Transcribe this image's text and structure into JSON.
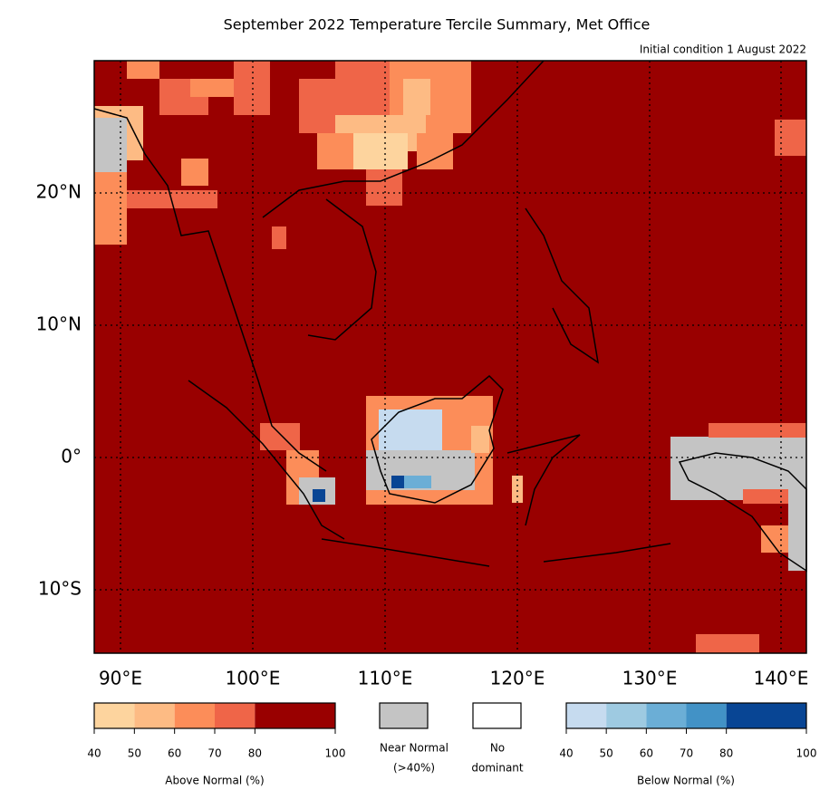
{
  "title": "September 2022 Temperature Tercile Summary, Met Office",
  "subtitle": "Initial condition 1 August 2022",
  "map": {
    "lat_labels": [
      "20°N",
      "10°N",
      "0°",
      "10°S"
    ],
    "lon_labels": [
      "90°E",
      "100°E",
      "110°E",
      "120°E",
      "130°E",
      "140°E"
    ],
    "background_color": "#990000"
  },
  "legend": {
    "above_normal": {
      "label": "Above Normal (%)",
      "ticks": [
        40,
        50,
        60,
        70,
        80,
        100
      ],
      "colors": [
        "#fdd49e",
        "#fdbb84",
        "#fc8d59",
        "#ef6548",
        "#990000"
      ]
    },
    "near_normal": {
      "label": [
        "Near Normal",
        "(>40%)"
      ],
      "color": "#c4c4c4"
    },
    "no_dominant": {
      "label": [
        "No",
        "dominant"
      ],
      "color": "#ffffff"
    },
    "below_normal": {
      "label": "Below Normal (%)",
      "ticks": [
        40,
        50,
        60,
        70,
        80,
        100
      ],
      "colors": [
        "#c6dbef",
        "#9ecae1",
        "#6baed6",
        "#4292c6",
        "#084594"
      ]
    }
  }
}
